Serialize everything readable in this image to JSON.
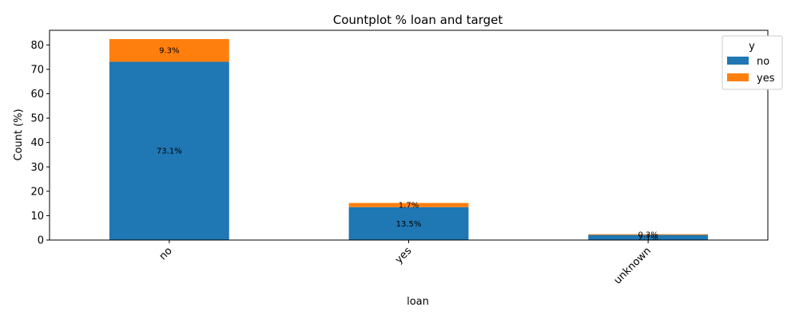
{
  "chart_data": {
    "type": "bar",
    "stacked": true,
    "title": "Countplot % loan and target",
    "xlabel": "loan",
    "ylabel": "Count (%)",
    "categories": [
      "no",
      "yes",
      "unknown"
    ],
    "series": [
      {
        "name": "no",
        "color": "#1f77b4",
        "values": [
          73.1,
          13.5,
          2.1
        ],
        "labels": [
          "73.1%",
          "13.5%",
          "2.1%"
        ]
      },
      {
        "name": "yes",
        "color": "#ff7f0e",
        "values": [
          9.3,
          1.7,
          0.3
        ],
        "labels": [
          "9.3%",
          "1.7%",
          "0.3%"
        ]
      }
    ],
    "ylim": [
      0,
      86
    ],
    "yticks": [
      0,
      10,
      20,
      30,
      40,
      50,
      60,
      70,
      80
    ],
    "legend": {
      "title": "y",
      "position": "top-right"
    },
    "grid": false
  }
}
